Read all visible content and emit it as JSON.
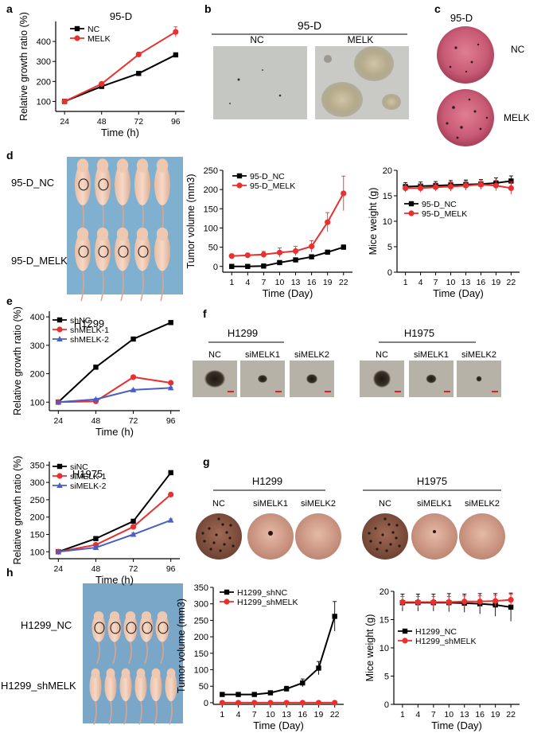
{
  "panels": {
    "a": "a",
    "b": "b",
    "c": "c",
    "d": "d",
    "e": "e",
    "f": "f",
    "g": "g",
    "h": "h"
  },
  "b_panel": {
    "title": "95-D",
    "labels": [
      "NC",
      "MELK"
    ]
  },
  "c_panel": {
    "title": "95-D",
    "labels": [
      "NC",
      "MELK"
    ]
  },
  "d_photo": {
    "labels": [
      "95-D_NC",
      "95-D_MELK"
    ]
  },
  "f_panel": {
    "groups": [
      {
        "title": "H1299",
        "labels": [
          "NC",
          "siMELK1",
          "siMELK2"
        ]
      },
      {
        "title": "H1975",
        "labels": [
          "NC",
          "siMELK1",
          "siMELK2"
        ]
      }
    ]
  },
  "g_panel": {
    "groups": [
      {
        "title": "H1299",
        "labels": [
          "NC",
          "siMELK1",
          "siMELK2"
        ]
      },
      {
        "title": "H1975",
        "labels": [
          "NC",
          "siMELK1",
          "siMELK2"
        ]
      }
    ]
  },
  "h_photo": {
    "labels": [
      "H1299_NC",
      "H1299_shMELK"
    ]
  },
  "chart_data": [
    {
      "id": "a",
      "type": "line",
      "title": "95-D",
      "xlabel": "Time (h)",
      "ylabel": "Relative growth ratio (%)",
      "x": [
        24,
        48,
        72,
        96
      ],
      "xticks": [
        24,
        48,
        72,
        96
      ],
      "ylim": [
        50,
        500
      ],
      "yticks": [
        100,
        200,
        300,
        400
      ],
      "series": [
        {
          "name": "NC",
          "color": "#000000",
          "marker": "square",
          "values": [
            100,
            175,
            240,
            333
          ],
          "err": [
            3,
            6,
            10,
            6
          ]
        },
        {
          "name": "MELK",
          "color": "#e8312f",
          "marker": "circle",
          "values": [
            100,
            188,
            335,
            448
          ],
          "err": [
            3,
            6,
            12,
            25
          ]
        }
      ]
    },
    {
      "id": "d1",
      "type": "line",
      "title": "",
      "xlabel": "Time (Day)",
      "ylabel": "Tumor volume (mm3)",
      "x": [
        1,
        4,
        7,
        10,
        13,
        16,
        19,
        22
      ],
      "xticks": [
        1,
        4,
        7,
        10,
        13,
        16,
        19,
        22
      ],
      "ylim": [
        -15,
        250
      ],
      "yticks": [
        0,
        50,
        100,
        150,
        200,
        250
      ],
      "series": [
        {
          "name": "95-D_NC",
          "color": "#000000",
          "marker": "square",
          "values": [
            0,
            0,
            1,
            10,
            17,
            25,
            37,
            50
          ],
          "err": [
            0,
            0,
            2,
            3,
            4,
            5,
            5,
            6
          ]
        },
        {
          "name": "95-D_MELK",
          "color": "#e8312f",
          "marker": "circle",
          "values": [
            27,
            29,
            31,
            36,
            40,
            52,
            115,
            190
          ],
          "err": [
            5,
            5,
            8,
            12,
            12,
            15,
            25,
            45
          ]
        }
      ]
    },
    {
      "id": "d2",
      "type": "line",
      "title": "",
      "xlabel": "Time (Day)",
      "ylabel": "Mice weight (g)",
      "x": [
        1,
        4,
        7,
        10,
        13,
        16,
        19,
        22
      ],
      "xticks": [
        1,
        4,
        7,
        10,
        13,
        16,
        19,
        22
      ],
      "ylim": [
        0,
        20
      ],
      "yticks": [
        0,
        5,
        10,
        15,
        20
      ],
      "series": [
        {
          "name": "95-D_NC",
          "color": "#000000",
          "marker": "square",
          "values": [
            16.8,
            16.9,
            17.0,
            17.1,
            17.2,
            17.3,
            17.5,
            17.9
          ],
          "err": [
            0.8,
            0.8,
            0.8,
            0.9,
            0.9,
            0.9,
            1.0,
            1.0
          ]
        },
        {
          "name": "95-D_MELK",
          "color": "#e8312f",
          "marker": "circle",
          "values": [
            16.5,
            16.5,
            16.7,
            16.8,
            17.0,
            17.2,
            17.0,
            16.5
          ],
          "err": [
            0.8,
            0.8,
            0.8,
            0.9,
            0.9,
            0.9,
            1.0,
            1.2
          ]
        }
      ]
    },
    {
      "id": "e1",
      "type": "line",
      "title": "H1299",
      "xlabel": "Time (h)",
      "ylabel": "Relative growth ratio (%)",
      "x": [
        24,
        48,
        72,
        96
      ],
      "xticks": [
        24,
        48,
        72,
        96
      ],
      "ylim": [
        70,
        420
      ],
      "yticks": [
        100,
        200,
        300,
        400
      ],
      "series": [
        {
          "name": "shNC",
          "color": "#000000",
          "marker": "square",
          "values": [
            100,
            223,
            322,
            380
          ],
          "err": [
            2,
            3,
            3,
            3
          ]
        },
        {
          "name": "shMELK-1",
          "color": "#e8312f",
          "marker": "circle",
          "values": [
            100,
            103,
            188,
            168
          ],
          "err": [
            2,
            3,
            3,
            3
          ]
        },
        {
          "name": "shMELK-2",
          "color": "#4a5ec4",
          "marker": "triangle",
          "values": [
            100,
            110,
            143,
            150
          ],
          "err": [
            2,
            3,
            3,
            3
          ]
        }
      ]
    },
    {
      "id": "e2",
      "type": "line",
      "title": "H1975",
      "xlabel": "Time (h)",
      "ylabel": "Relative growth ratio (%)",
      "x": [
        24,
        48,
        72,
        96
      ],
      "xticks": [
        24,
        48,
        72,
        96
      ],
      "ylim": [
        80,
        360
      ],
      "yticks": [
        100,
        150,
        200,
        250,
        300,
        350
      ],
      "series": [
        {
          "name": "siNC",
          "color": "#000000",
          "marker": "square",
          "values": [
            100,
            138,
            188,
            328
          ],
          "err": [
            2,
            5,
            5,
            6
          ]
        },
        {
          "name": "siMELK-1",
          "color": "#e8312f",
          "marker": "circle",
          "values": [
            100,
            120,
            172,
            265
          ],
          "err": [
            2,
            4,
            4,
            4
          ]
        },
        {
          "name": "siMELK-2",
          "color": "#4a5ec4",
          "marker": "triangle",
          "values": [
            100,
            112,
            150,
            191
          ],
          "err": [
            2,
            4,
            4,
            4
          ]
        }
      ]
    },
    {
      "id": "h1",
      "type": "line",
      "title": "",
      "xlabel": "Time (Day)",
      "ylabel": "Tumor volume (mm3)",
      "x": [
        1,
        4,
        7,
        10,
        13,
        16,
        19,
        22
      ],
      "xticks": [
        1,
        4,
        7,
        10,
        13,
        16,
        19,
        22
      ],
      "ylim": [
        -5,
        350
      ],
      "yticks": [
        0,
        50,
        100,
        150,
        200,
        250,
        300,
        350
      ],
      "series": [
        {
          "name": "H1299_shNC",
          "color": "#000000",
          "marker": "square",
          "values": [
            25,
            25,
            25,
            30,
            42,
            60,
            105,
            262
          ],
          "err": [
            2,
            2,
            3,
            5,
            8,
            12,
            20,
            45
          ]
        },
        {
          "name": "H1299_shMELK",
          "color": "#e8312f",
          "marker": "circle",
          "values": [
            0,
            0,
            0,
            0,
            0,
            0,
            0,
            0
          ],
          "err": [
            0,
            0,
            0,
            0,
            0,
            0,
            0,
            0
          ]
        }
      ]
    },
    {
      "id": "h2",
      "type": "line",
      "title": "",
      "xlabel": "Time (Day)",
      "ylabel": "Mice weight (g)",
      "x": [
        1,
        4,
        7,
        10,
        13,
        16,
        19,
        22
      ],
      "xticks": [
        1,
        4,
        7,
        10,
        13,
        16,
        19,
        22
      ],
      "ylim": [
        0,
        20
      ],
      "yticks": [
        0,
        5,
        10,
        15,
        20
      ],
      "series": [
        {
          "name": "H1299_NC",
          "color": "#000000",
          "marker": "square",
          "values": [
            18.0,
            18.0,
            18.0,
            18.0,
            17.9,
            17.8,
            17.6,
            17.2
          ],
          "err": [
            1.5,
            1.5,
            1.5,
            1.6,
            1.6,
            1.8,
            2.0,
            2.5
          ]
        },
        {
          "name": "H1299_shMELK",
          "color": "#e8312f",
          "marker": "circle",
          "values": [
            18.1,
            18.1,
            18.1,
            18.1,
            18.2,
            18.2,
            18.3,
            18.5
          ],
          "err": [
            1.0,
            1.0,
            1.0,
            1.0,
            1.0,
            1.0,
            1.0,
            1.0
          ]
        }
      ]
    }
  ]
}
